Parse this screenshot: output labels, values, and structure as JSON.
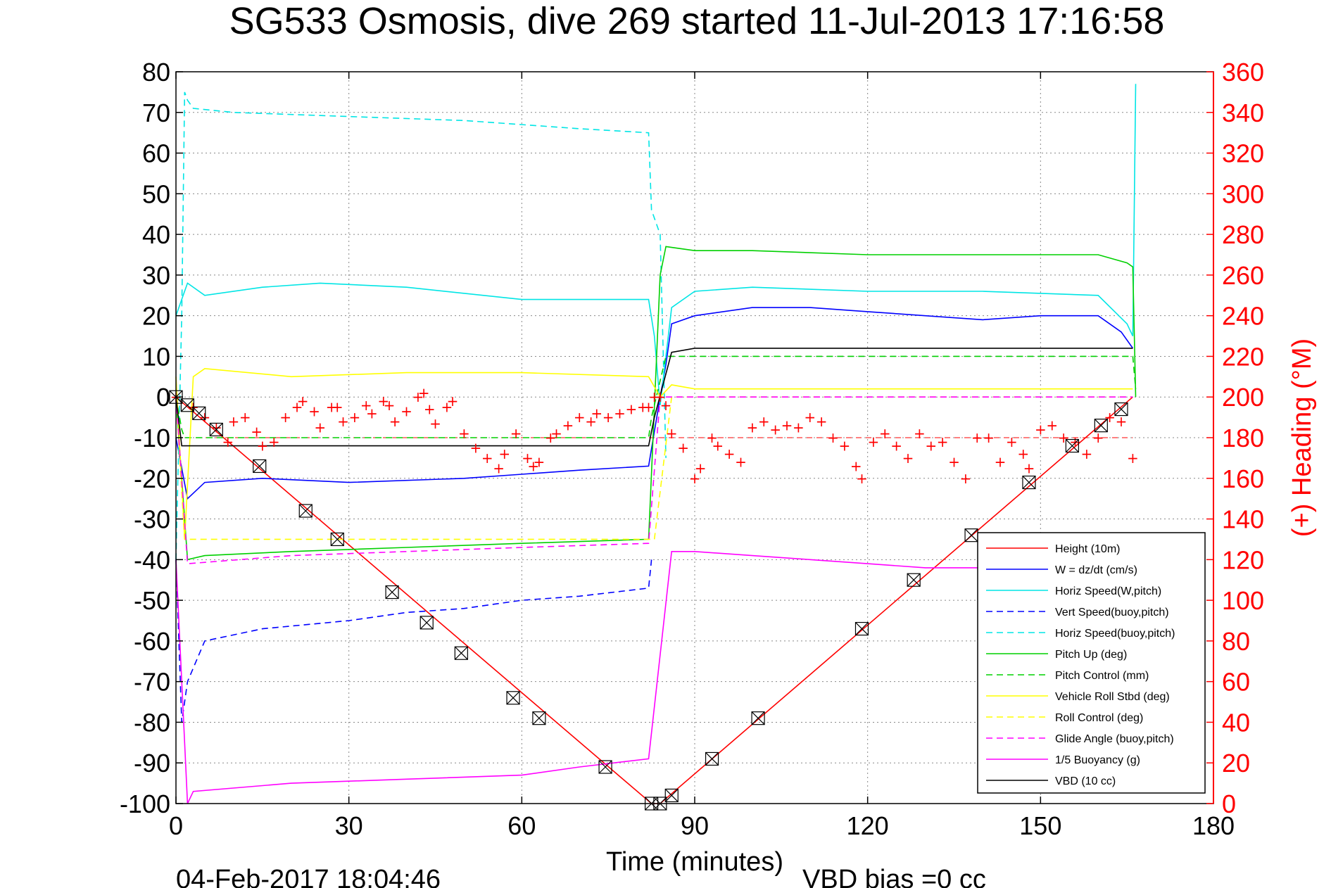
{
  "chart_data": {
    "type": "line",
    "title": "SG533 Osmosis, dive 269 started 11-Jul-2013 17:16:58",
    "xlabel": "Time (minutes)",
    "ylabel_right": "(+) Heading (°M)",
    "footer_date": "04-Feb-2017 18:04:46",
    "footer_note": "VBD bias =0 cc",
    "xlim": [
      0,
      180
    ],
    "ylim": [
      -100,
      80
    ],
    "ylim_right": [
      0,
      360
    ],
    "x_ticks": [
      "0",
      "30",
      "60",
      "90",
      "120",
      "150",
      "180"
    ],
    "y_ticks": [
      "-100",
      "-90",
      "-80",
      "-70",
      "-60",
      "-50",
      "-40",
      "-30",
      "-20",
      "-10",
      "0",
      "10",
      "20",
      "30",
      "40",
      "50",
      "60",
      "70",
      "80"
    ],
    "y2_ticks": [
      "0",
      "20",
      "40",
      "60",
      "80",
      "100",
      "120",
      "140",
      "160",
      "180",
      "200",
      "220",
      "240",
      "260",
      "280",
      "300",
      "320",
      "340",
      "360"
    ],
    "grid": true,
    "legend_position": "bottom-right",
    "colors": {
      "heading_axis": "#ff0000",
      "height": "#ff0000",
      "w": "#0000ff",
      "horiz_w": "#00e5e5",
      "pitch": "#00d000",
      "roll": "#ffff00",
      "glide": "#ff00ff",
      "buoy": "#ff00ff",
      "vbd": "#000000"
    },
    "series": [
      {
        "name": "Height (10m)",
        "key": "height",
        "style": "solid",
        "x": [
          0,
          82.5,
          84,
          166
        ],
        "y": [
          0,
          -100,
          -100,
          0
        ]
      },
      {
        "name": "W = dz/dt (cm/s)",
        "key": "w",
        "style": "solid",
        "x": [
          0,
          2,
          5,
          15,
          30,
          50,
          60,
          70,
          82,
          84,
          85,
          86,
          90,
          100,
          110,
          120,
          140,
          150,
          160,
          164,
          166
        ],
        "y": [
          -10,
          -25,
          -21,
          -20,
          -21,
          -20,
          -19,
          -18,
          -17,
          0,
          8,
          18,
          20,
          22,
          22,
          21,
          19,
          20,
          20,
          16,
          12
        ]
      },
      {
        "name": "Horiz Speed(W,pitch)",
        "key": "horiz_w",
        "style": "solid",
        "x": [
          0,
          2,
          5,
          15,
          25,
          40,
          60,
          82,
          83,
          84,
          85,
          86,
          90,
          100,
          120,
          140,
          160,
          165,
          166,
          166.5
        ],
        "y": [
          20,
          28,
          25,
          27,
          28,
          27,
          24,
          24,
          15,
          -2,
          10,
          22,
          26,
          27,
          26,
          26,
          25,
          18,
          15,
          77
        ]
      },
      {
        "name": "Vert Speed(buoy,pitch)",
        "key": "vert_buoy",
        "style": "dashed",
        "x": [
          0,
          1,
          2,
          5,
          15,
          30,
          40,
          50,
          60,
          70,
          82,
          82.5
        ],
        "y": [
          -40,
          -80,
          -70,
          -60,
          -57,
          -55,
          -53,
          -52,
          -50,
          -49,
          -47,
          -40
        ]
      },
      {
        "name": "Horiz Speed(buoy,pitch)",
        "key": "horiz_buoy",
        "style": "dashed",
        "x": [
          0,
          1,
          1.5,
          2,
          3,
          10,
          30,
          50,
          70,
          82,
          82.5,
          84,
          85
        ],
        "y": [
          -40,
          20,
          75,
          73,
          71,
          70,
          69,
          68,
          66,
          65,
          46,
          40,
          -15
        ]
      },
      {
        "name": "Pitch Up (deg)",
        "key": "pitch",
        "style": "solid",
        "x": [
          0,
          2,
          5,
          20,
          40,
          60,
          82,
          84,
          85,
          90,
          100,
          120,
          140,
          160,
          165,
          166,
          166.5
        ],
        "y": [
          0,
          -40,
          -39,
          -38,
          -37,
          -36,
          -35,
          30,
          37,
          36,
          36,
          35,
          35,
          35,
          33,
          32,
          0
        ]
      },
      {
        "name": "Pitch Control (mm)",
        "key": "pitch_ctl",
        "style": "dashed",
        "x": [
          0,
          1,
          1.5,
          82,
          82.5,
          85,
          166,
          166.5
        ],
        "y": [
          0,
          -8,
          -10,
          -10,
          -5,
          10,
          10,
          2
        ]
      },
      {
        "name": "Vehicle Roll Stbd (deg)",
        "key": "roll",
        "style": "solid",
        "x": [
          0,
          1.5,
          3,
          5,
          20,
          40,
          60,
          82,
          84,
          86,
          90,
          100,
          120,
          140,
          160,
          166
        ],
        "y": [
          5,
          -35,
          5,
          7,
          5,
          6,
          6,
          5,
          0,
          3,
          2,
          2,
          2,
          2,
          2,
          2
        ]
      },
      {
        "name": "Roll Control (deg)",
        "key": "roll_ctl",
        "style": "dashed",
        "x": [
          0,
          1.5,
          2,
          82,
          83,
          86,
          87,
          166
        ],
        "y": [
          0,
          -35,
          -35,
          -35,
          -35,
          0,
          0,
          0
        ]
      },
      {
        "name": "Glide Angle (buoy,pitch)",
        "key": "glide",
        "style": "dashed",
        "x": [
          0,
          2,
          20,
          40,
          60,
          82,
          84,
          86,
          166
        ],
        "y": [
          0,
          -41,
          -39,
          -38,
          -37,
          -36,
          0,
          0,
          0
        ]
      },
      {
        "name": "1/5 Buoyancy (g)",
        "key": "buoy",
        "style": "solid",
        "x": [
          0,
          2,
          3,
          20,
          40,
          60,
          70,
          82,
          86,
          90,
          100,
          110,
          120,
          130,
          140,
          150,
          160,
          166
        ],
        "y": [
          -40,
          -100,
          -97,
          -95,
          -94,
          -93,
          -91,
          -89,
          -38,
          -38,
          -39,
          -40,
          -41,
          -42,
          -42,
          -43,
          -43,
          -43
        ]
      },
      {
        "name": "VBD (10 cc)",
        "key": "vbd",
        "style": "solid",
        "x": [
          0,
          1,
          82,
          83,
          86,
          90,
          166
        ],
        "y": [
          0,
          -12,
          -12,
          -5,
          11,
          12,
          12
        ]
      }
    ],
    "markers": [
      {
        "x": 0,
        "y": 0
      },
      {
        "x": 2,
        "y": -2
      },
      {
        "x": 4,
        "y": -4
      },
      {
        "x": 7,
        "y": -8
      },
      {
        "x": 14.5,
        "y": -17
      },
      {
        "x": 22.5,
        "y": -28
      },
      {
        "x": 28,
        "y": -35
      },
      {
        "x": 37.5,
        "y": -48
      },
      {
        "x": 43.5,
        "y": -55.5
      },
      {
        "x": 49.5,
        "y": -63
      },
      {
        "x": 58.5,
        "y": -74
      },
      {
        "x": 63,
        "y": -79
      },
      {
        "x": 74.5,
        "y": -91
      },
      {
        "x": 82.5,
        "y": -100
      },
      {
        "x": 84,
        "y": -100
      },
      {
        "x": 86,
        "y": -98
      },
      {
        "x": 93,
        "y": -89
      },
      {
        "x": 101,
        "y": -79
      },
      {
        "x": 119,
        "y": -57
      },
      {
        "x": 128,
        "y": -45
      },
      {
        "x": 138,
        "y": -34
      },
      {
        "x": 148,
        "y": -21
      },
      {
        "x": 155.5,
        "y": -12
      },
      {
        "x": 160.5,
        "y": -7
      },
      {
        "x": 164,
        "y": -3
      }
    ],
    "heading_reference_deg": 180,
    "heading_samples": {
      "x": [
        0,
        3,
        5,
        7,
        9,
        10,
        12,
        14,
        15,
        17,
        19,
        21,
        22,
        24,
        25,
        27,
        28,
        29,
        31,
        33,
        34,
        36,
        37,
        38,
        40,
        42,
        43,
        44,
        45,
        47,
        48,
        50,
        52,
        54,
        56,
        57,
        59,
        61,
        62,
        63,
        65,
        66,
        68,
        70,
        72,
        73,
        75,
        77,
        79,
        81,
        82,
        83,
        84,
        85,
        86,
        88,
        90,
        91,
        93,
        94,
        96,
        98,
        100,
        102,
        104,
        106,
        108,
        110,
        112,
        114,
        116,
        118,
        119,
        121,
        123,
        125,
        127,
        129,
        131,
        133,
        135,
        137,
        139,
        141,
        143,
        145,
        147,
        148,
        150,
        152,
        154,
        156,
        158,
        160,
        162,
        164,
        166
      ],
      "y": [
        200,
        195,
        190,
        185,
        178,
        188,
        190,
        183,
        176,
        178,
        190,
        195,
        198,
        193,
        185,
        195,
        195,
        188,
        190,
        196,
        192,
        198,
        196,
        188,
        193,
        200,
        202,
        194,
        187,
        195,
        198,
        182,
        175,
        170,
        165,
        172,
        182,
        170,
        166,
        168,
        180,
        182,
        186,
        190,
        188,
        192,
        190,
        192,
        194,
        195,
        195,
        200,
        200,
        196,
        182,
        175,
        160,
        165,
        180,
        176,
        172,
        168,
        185,
        188,
        184,
        186,
        185,
        190,
        188,
        180,
        176,
        166,
        160,
        178,
        182,
        176,
        170,
        182,
        176,
        178,
        168,
        160,
        180,
        180,
        168,
        178,
        172,
        165,
        184,
        186,
        180,
        178,
        172,
        180,
        190,
        188,
        170
      ]
    }
  }
}
